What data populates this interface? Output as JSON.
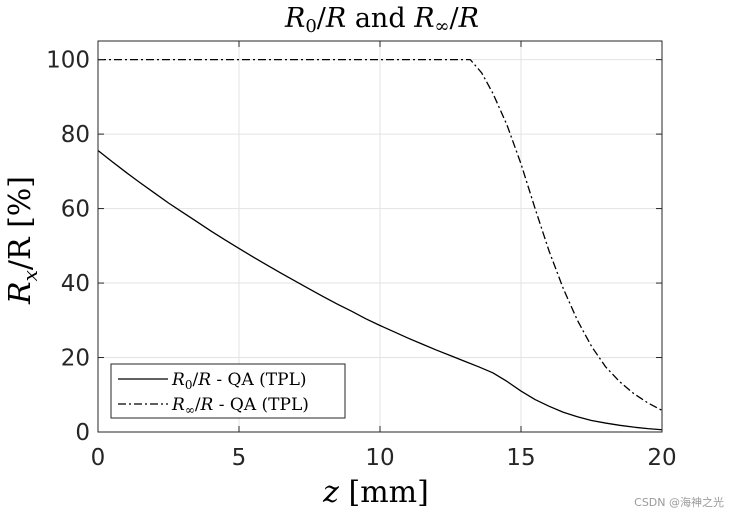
{
  "chart_data": {
    "type": "line",
    "title_parts": [
      "R",
      "0",
      "/",
      "R",
      " and ",
      "R",
      "∞",
      "/",
      "R"
    ],
    "xlabel": "z [mm]",
    "ylabel": "Rx/R [%]",
    "xlim": [
      0,
      20
    ],
    "ylim": [
      0,
      105
    ],
    "xticks": [
      0,
      5,
      10,
      15,
      20
    ],
    "yticks": [
      0,
      20,
      40,
      60,
      80,
      100
    ],
    "grid": true,
    "legend_position": "bottom-left",
    "series": [
      {
        "name": "R0/R - QA (TPL)",
        "style": "solid",
        "color": "#000000",
        "x": [
          0,
          0.5,
          1,
          1.5,
          2,
          2.5,
          3,
          3.5,
          4,
          4.5,
          5,
          5.5,
          6,
          6.5,
          7,
          7.5,
          8,
          8.5,
          9,
          9.5,
          10,
          10.5,
          11,
          11.5,
          12,
          12.5,
          13,
          13.5,
          14,
          14.5,
          15,
          15.5,
          16,
          16.5,
          17,
          17.5,
          18,
          18.5,
          19,
          19.5,
          20
        ],
        "y": [
          75.6,
          72.6,
          69.7,
          66.9,
          64.2,
          61.5,
          59.0,
          56.5,
          54.0,
          51.6,
          49.3,
          47.0,
          44.8,
          42.6,
          40.5,
          38.4,
          36.3,
          34.3,
          32.4,
          30.4,
          28.6,
          26.9,
          25.2,
          23.6,
          22.0,
          20.5,
          19.0,
          17.5,
          15.9,
          13.6,
          11.0,
          8.7,
          6.9,
          5.3,
          4.1,
          3.1,
          2.4,
          1.8,
          1.3,
          0.9,
          0.6
        ]
      },
      {
        "name": "R∞/R - QA (TPL)",
        "style": "dashdot",
        "color": "#000000",
        "x": [
          0,
          13.2,
          13.6,
          14,
          14.5,
          15,
          15.5,
          16,
          16.5,
          17,
          17.5,
          18,
          18.5,
          19,
          19.5,
          20
        ],
        "y": [
          100,
          100,
          96.5,
          91,
          82.5,
          72,
          60,
          48.5,
          38.5,
          30,
          23,
          17.5,
          13.5,
          10.3,
          7.8,
          5.8
        ]
      }
    ],
    "legend": [
      {
        "base": "R",
        "sub": "0",
        "rest1": "/",
        "rest2": "R",
        "suffix": " - QA (TPL)"
      },
      {
        "base": "R",
        "sub": "∞",
        "rest1": "/",
        "rest2": "R",
        "suffix": " - QA (TPL)"
      }
    ],
    "ylabel_parts": {
      "base": "R",
      "sub": "x",
      "rest": "/R [%]"
    },
    "xlabel_parts": {
      "var": "z",
      "rest": " [mm]"
    }
  },
  "watermark": "CSDN @海神之光"
}
